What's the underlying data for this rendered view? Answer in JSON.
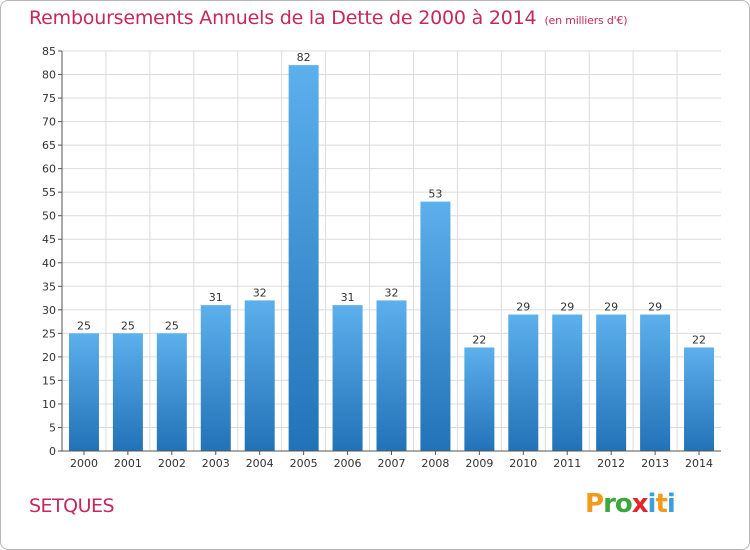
{
  "header": {
    "title": "Remboursements Annuels de la Dette de 2000 à 2014",
    "subtitle": "(en milliers d'€)"
  },
  "footer": {
    "commune": "SETQUES",
    "logo_letters": [
      {
        "char": "P",
        "color": "#f39a1e"
      },
      {
        "char": "r",
        "color": "#3aa83a"
      },
      {
        "char": "o",
        "color": "#3aa83a"
      },
      {
        "char": "x",
        "color": "#e3262e"
      },
      {
        "char": "i",
        "color": "#3aa0e0"
      },
      {
        "char": "t",
        "color": "#f39a1e"
      },
      {
        "char": "i",
        "color": "#3aa0e0"
      }
    ]
  },
  "colors": {
    "accent": "#c6285c",
    "bar_top": "#5cb0ec",
    "bar_bottom": "#2272b8",
    "grid": "#dcdcdc",
    "axis": "#555555"
  },
  "chart_data": {
    "type": "bar",
    "categories": [
      "2000",
      "2001",
      "2002",
      "2003",
      "2004",
      "2005",
      "2006",
      "2007",
      "2008",
      "2009",
      "2010",
      "2011",
      "2012",
      "2013",
      "2014"
    ],
    "values": [
      25,
      25,
      25,
      31,
      32,
      82,
      31,
      32,
      53,
      22,
      29,
      29,
      29,
      29,
      22
    ],
    "ylim": [
      0,
      85
    ],
    "yticks": [
      0,
      5,
      10,
      15,
      20,
      25,
      30,
      35,
      40,
      45,
      50,
      55,
      60,
      65,
      70,
      75,
      80,
      85
    ],
    "grid": true,
    "data_labels": true
  }
}
